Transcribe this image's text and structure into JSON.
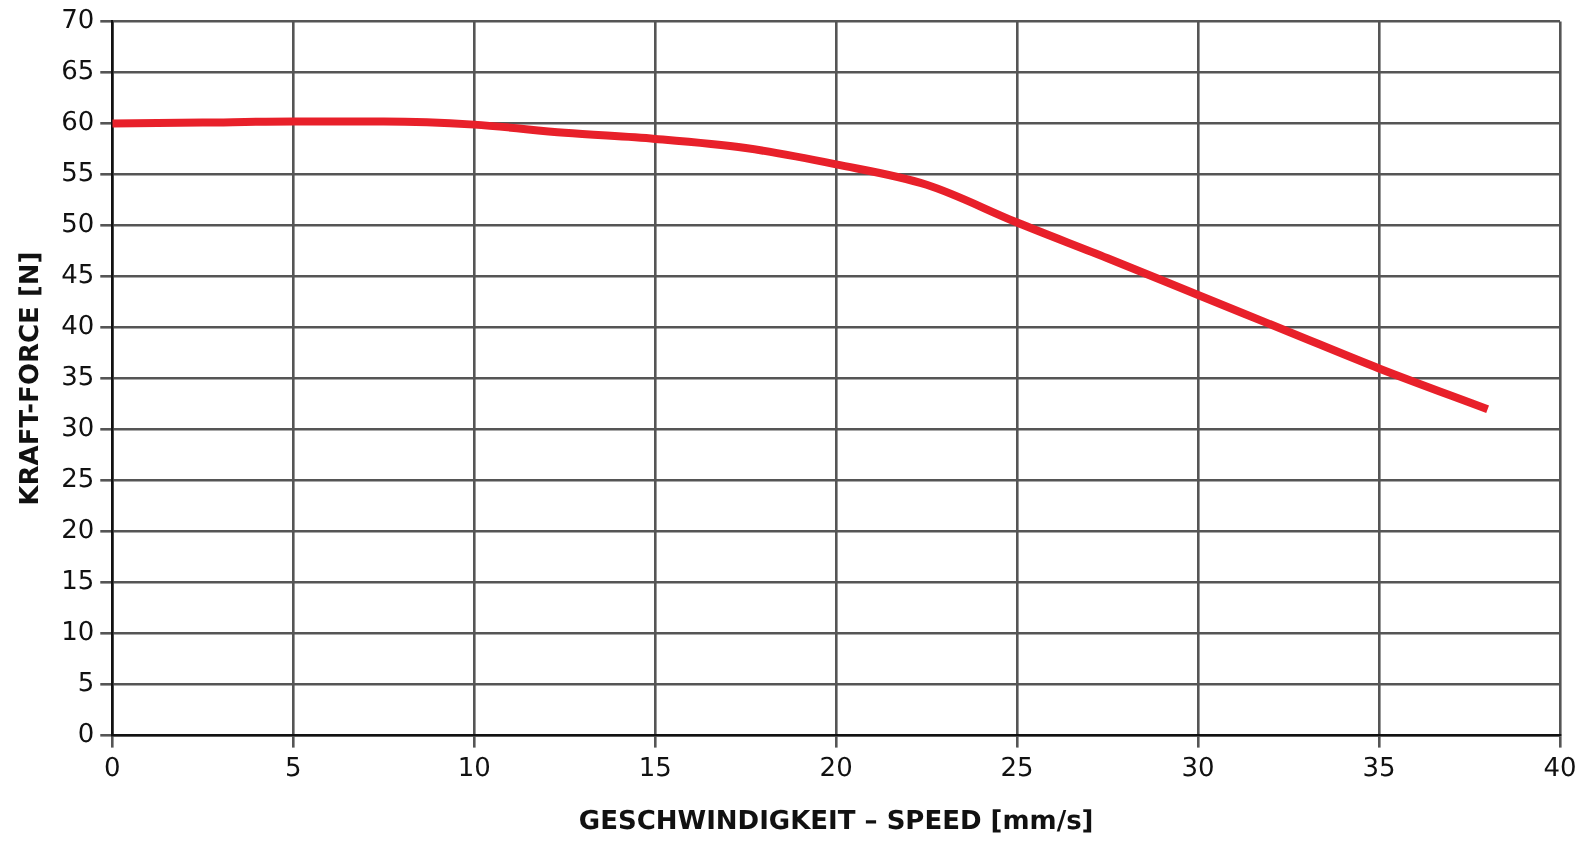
{
  "chart_data": {
    "type": "line",
    "xlabel": "GESCHWINDIGKEIT – SPEED [mm/s]",
    "ylabel": "KRAFT-FORCE [N]",
    "x": [
      0,
      2.5,
      5,
      7.5,
      10,
      12.5,
      15,
      17.5,
      20,
      22.5,
      25,
      27.5,
      30,
      32.5,
      35,
      38
    ],
    "series": [
      {
        "color": "#e8202a",
        "values": [
          60,
          60.1,
          60.2,
          60.2,
          59.9,
          59.1,
          58.5,
          57.6,
          56,
          54,
          50.3,
          46.8,
          43.2,
          39.6,
          36,
          32
        ]
      }
    ],
    "xlim": [
      0,
      40
    ],
    "xticks": [
      0,
      5,
      10,
      15,
      20,
      25,
      30,
      35,
      40
    ],
    "ylim": [
      0,
      70
    ],
    "yticks": [
      0,
      5,
      10,
      15,
      20,
      25,
      30,
      35,
      40,
      45,
      50,
      55,
      60,
      65,
      70
    ],
    "grid": true,
    "legend": false,
    "marker": "none",
    "line_style": "solid"
  }
}
